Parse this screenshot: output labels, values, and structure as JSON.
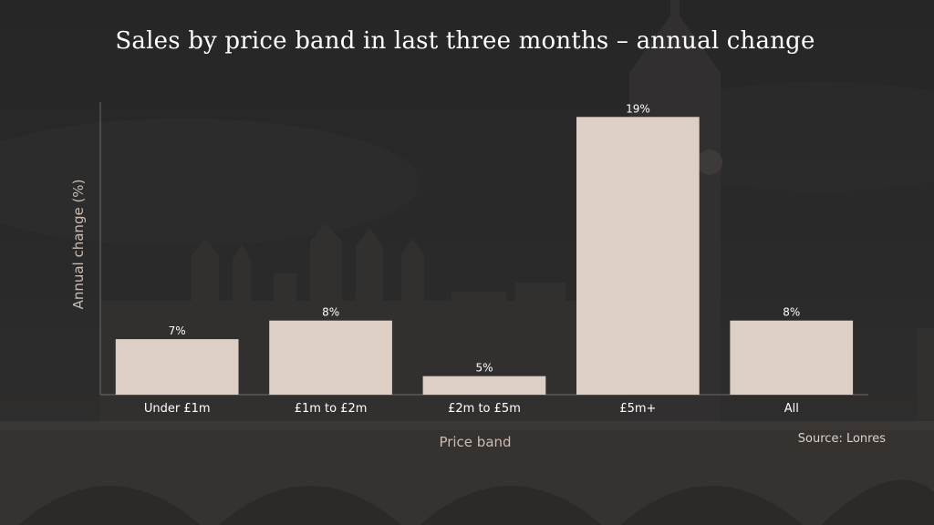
{
  "title": "Sales by price band in last three months – annual change",
  "source": "Source: Lonres",
  "colors": {
    "bar": "#ddcfc6",
    "text": "#ffffff",
    "axis_title": "#cbbcb2",
    "background": "#2e2e2e"
  },
  "chart_data": {
    "type": "bar",
    "title": "Sales by price band in last three months – annual change",
    "xlabel": "Price band",
    "ylabel": "Annual change (%)",
    "categories": [
      "Under £1m",
      "£1m to £2m",
      "£2m to £5m",
      "£5m+",
      "All"
    ],
    "values": [
      7,
      8,
      5,
      19,
      8
    ],
    "data_labels": [
      "7%",
      "8%",
      "5%",
      "19%",
      "8%"
    ],
    "ylim": [
      4,
      19.8
    ],
    "grid": false,
    "legend": "none"
  }
}
